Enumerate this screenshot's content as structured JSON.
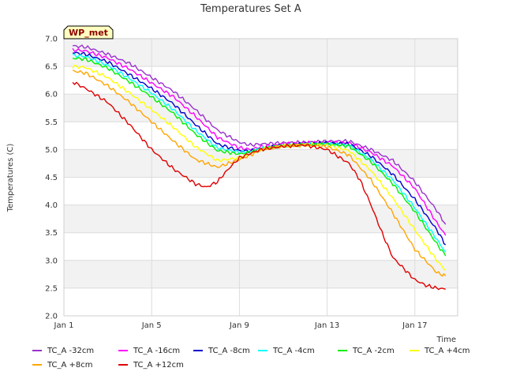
{
  "chart_data": {
    "type": "line",
    "title": "Temperatures Set A",
    "xlabel": "Time",
    "ylabel": "Temperatures (C)",
    "badge": "WP_met",
    "xlim": [
      0,
      17.95
    ],
    "ylim": [
      2.0,
      7.0
    ],
    "yticks": [
      2.0,
      2.5,
      3.0,
      3.5,
      4.0,
      4.5,
      5.0,
      5.5,
      6.0,
      6.5,
      7.0
    ],
    "xticks": [
      {
        "day": 0,
        "label": "Jan 1"
      },
      {
        "day": 4,
        "label": "Jan 5"
      },
      {
        "day": 8,
        "label": "Jan 9"
      },
      {
        "day": 12,
        "label": "Jan 13"
      },
      {
        "day": 16,
        "label": "Jan 17"
      }
    ],
    "x_units": "days since Jan 1",
    "series": [
      {
        "name": "TC_A -32cm",
        "color": "#9932cc",
        "x": [
          0.4,
          1.0,
          2.0,
          3.0,
          4.0,
          5.0,
          6.0,
          7.0,
          8.0,
          8.5,
          9.0,
          10.0,
          11.0,
          12.0,
          13.0,
          14.0,
          15.0,
          16.0,
          17.0,
          17.4
        ],
        "values": [
          6.87,
          6.85,
          6.72,
          6.55,
          6.3,
          6.05,
          5.72,
          5.35,
          5.13,
          5.08,
          5.1,
          5.12,
          5.13,
          5.15,
          5.15,
          5.0,
          4.8,
          4.42,
          3.9,
          3.65
        ]
      },
      {
        "name": "TC_A -16cm",
        "color": "#ff00ff",
        "x": [
          0.4,
          1.0,
          2.0,
          3.0,
          4.0,
          5.0,
          6.0,
          7.0,
          8.0,
          8.5,
          9.0,
          10.0,
          11.0,
          12.0,
          13.0,
          14.0,
          15.0,
          16.0,
          17.0,
          17.4
        ],
        "values": [
          6.8,
          6.78,
          6.65,
          6.45,
          6.2,
          5.95,
          5.6,
          5.22,
          5.03,
          5.0,
          5.05,
          5.1,
          5.12,
          5.13,
          5.12,
          4.95,
          4.7,
          4.3,
          3.68,
          3.45
        ]
      },
      {
        "name": "TC_A -8cm",
        "color": "#0000cd",
        "x": [
          0.4,
          1.0,
          2.0,
          3.0,
          4.0,
          5.0,
          6.0,
          7.0,
          8.0,
          8.5,
          9.0,
          10.0,
          11.0,
          12.0,
          13.0,
          14.0,
          15.0,
          16.0,
          17.0,
          17.4
        ],
        "values": [
          6.75,
          6.72,
          6.58,
          6.35,
          6.1,
          5.82,
          5.45,
          5.1,
          4.98,
          4.97,
          5.02,
          5.08,
          5.1,
          5.12,
          5.1,
          4.88,
          4.55,
          4.1,
          3.55,
          3.28
        ]
      },
      {
        "name": "TC_A -4cm",
        "color": "#00ffff",
        "x": [
          0.4,
          1.0,
          2.0,
          3.0,
          4.0,
          5.0,
          6.0,
          7.0,
          8.0,
          8.5,
          9.0,
          10.0,
          11.0,
          12.0,
          13.0,
          14.0,
          15.0,
          16.0,
          17.0,
          17.4
        ],
        "values": [
          6.7,
          6.68,
          6.52,
          6.28,
          6.02,
          5.72,
          5.35,
          5.03,
          4.95,
          4.96,
          5.02,
          5.07,
          5.09,
          5.1,
          5.08,
          4.82,
          4.45,
          3.95,
          3.38,
          3.15
        ]
      },
      {
        "name": "TC_A -2cm",
        "color": "#00ee00",
        "x": [
          0.4,
          1.0,
          2.0,
          3.0,
          4.0,
          5.0,
          6.0,
          7.0,
          8.0,
          8.5,
          9.0,
          10.0,
          11.0,
          12.0,
          13.0,
          14.0,
          15.0,
          16.0,
          17.0,
          17.4
        ],
        "values": [
          6.65,
          6.63,
          6.47,
          6.22,
          5.95,
          5.65,
          5.28,
          4.98,
          4.92,
          4.95,
          5.01,
          5.07,
          5.09,
          5.1,
          5.06,
          4.78,
          4.38,
          3.88,
          3.3,
          3.08
        ]
      },
      {
        "name": "TC_A +4cm",
        "color": "#ffff00",
        "x": [
          0.4,
          1.0,
          2.0,
          3.0,
          4.0,
          5.0,
          6.0,
          7.0,
          8.0,
          8.5,
          9.0,
          10.0,
          11.0,
          12.0,
          13.0,
          14.0,
          15.0,
          16.0,
          17.0,
          17.4
        ],
        "values": [
          6.5,
          6.48,
          6.3,
          6.02,
          5.72,
          5.4,
          5.05,
          4.8,
          4.85,
          4.92,
          5.0,
          5.07,
          5.09,
          5.08,
          4.98,
          4.62,
          4.12,
          3.55,
          3.0,
          2.82
        ]
      },
      {
        "name": "TC_A +8cm",
        "color": "#ffa500",
        "x": [
          0.4,
          1.0,
          2.0,
          3.0,
          4.0,
          5.0,
          6.0,
          7.0,
          8.0,
          8.5,
          9.0,
          10.0,
          11.0,
          12.0,
          13.0,
          14.0,
          15.0,
          16.0,
          17.0,
          17.4
        ],
        "values": [
          6.42,
          6.38,
          6.15,
          5.85,
          5.5,
          5.15,
          4.82,
          4.68,
          4.82,
          4.9,
          5.0,
          5.06,
          5.08,
          5.05,
          4.9,
          4.45,
          3.85,
          3.2,
          2.78,
          2.72
        ]
      },
      {
        "name": "TC_A +12cm",
        "color": "#e00000",
        "x": [
          0.4,
          1.0,
          2.0,
          3.0,
          4.0,
          5.0,
          6.0,
          6.5,
          7.0,
          7.5,
          8.0,
          8.5,
          9.0,
          10.0,
          11.0,
          12.0,
          13.0,
          13.5,
          14.0,
          14.5,
          15.0,
          15.5,
          16.0,
          16.5,
          17.0,
          17.4
        ],
        "values": [
          6.22,
          6.1,
          5.85,
          5.45,
          5.0,
          4.65,
          4.38,
          4.32,
          4.42,
          4.65,
          4.85,
          4.93,
          5.0,
          5.06,
          5.08,
          5.0,
          4.75,
          4.45,
          4.0,
          3.5,
          3.05,
          2.85,
          2.65,
          2.55,
          2.5,
          2.48
        ]
      }
    ]
  }
}
